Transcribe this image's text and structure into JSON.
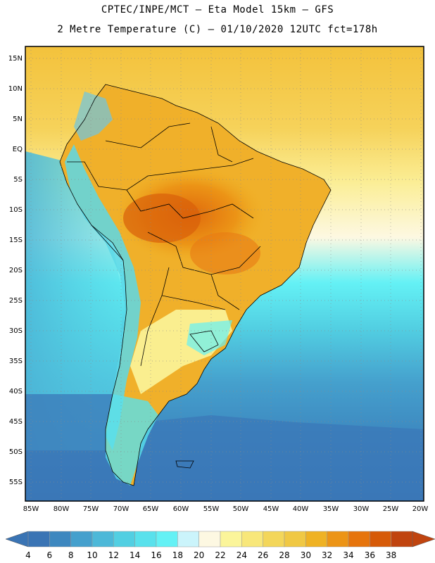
{
  "title_line1": "CPTEC/INPE/MCT –  Eta Model 15km – GFS",
  "title_line2": "2 Metre Temperature (C) – 01/10/2020 12UTC fct=178h",
  "lat_ticks": [
    "15N",
    "10N",
    "5N",
    "EQ",
    "5S",
    "10S",
    "15S",
    "20S",
    "25S",
    "30S",
    "35S",
    "40S",
    "45S",
    "50S",
    "55S"
  ],
  "lon_ticks": [
    "85W",
    "80W",
    "75W",
    "70W",
    "65W",
    "60W",
    "55W",
    "50W",
    "45W",
    "40W",
    "35W",
    "30W",
    "25W",
    "20W"
  ],
  "colorbar": {
    "labels": [
      "4",
      "6",
      "8",
      "10",
      "12",
      "14",
      "16",
      "18",
      "20",
      "22",
      "24",
      "26",
      "28",
      "30",
      "32",
      "34",
      "36",
      "38"
    ],
    "under_color": "#3a74b4",
    "over_color": "#c0440f",
    "colors": [
      "#3a74b4",
      "#3d87bf",
      "#45a0cd",
      "#4db8d8",
      "#52cfe2",
      "#59e1ec",
      "#64f1f5",
      "#cbf4fb",
      "#fdf8e2",
      "#fbf59a",
      "#f8e77a",
      "#f3d65a",
      "#f0c844",
      "#efb224",
      "#ec9416",
      "#e6740c",
      "#d65a08",
      "#c0440f"
    ]
  },
  "map": {
    "ocean_south": "#3b78b8",
    "ocean_mid": "#4bb8d6",
    "ocean_tropic": "#fbee96",
    "land_hot": "#e87a14",
    "land_warm": "#f0b02a",
    "land_mild": "#f7dc72",
    "andes_cold": "#5cd8e8",
    "border_color": "#000000"
  }
}
